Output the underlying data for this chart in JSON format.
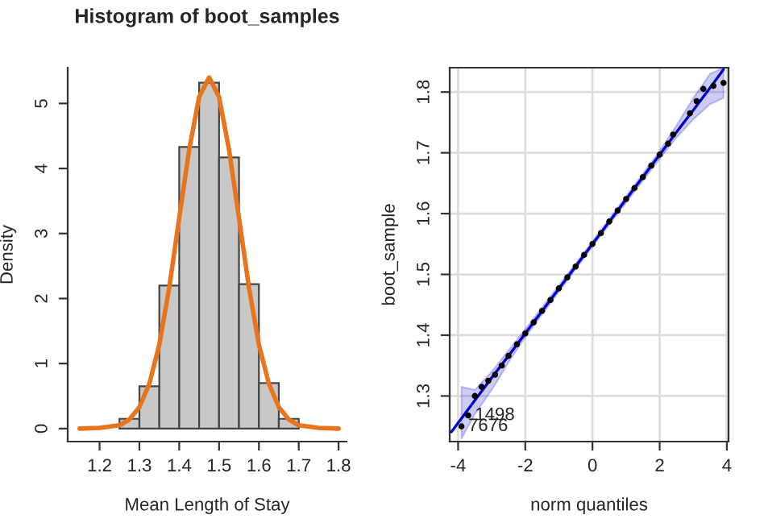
{
  "chart_data": [
    {
      "type": "histogram",
      "title": "Histogram of boot_samples",
      "xlabel": "Mean Length of Stay",
      "ylabel": "Density",
      "bins": [
        1.25,
        1.3,
        1.35,
        1.4,
        1.45,
        1.5,
        1.55,
        1.6,
        1.65,
        1.7,
        1.75
      ],
      "series": [
        {
          "type": "histogram",
          "color": "#c8c8c8",
          "values": [
            0.15,
            0.65,
            2.2,
            4.33,
            5.32,
            4.17,
            2.22,
            0.7,
            0.15,
            null
          ]
        },
        {
          "type": "line",
          "color": "#e8741e",
          "x": [
            1.15,
            1.2,
            1.25,
            1.275,
            1.3,
            1.325,
            1.35,
            1.375,
            1.4,
            1.425,
            1.45,
            1.475,
            1.5,
            1.525,
            1.55,
            1.575,
            1.6,
            1.625,
            1.65,
            1.675,
            1.7,
            1.75,
            1.8
          ],
          "values": [
            0,
            0.01,
            0.05,
            0.14,
            0.33,
            0.69,
            1.29,
            2.17,
            3.24,
            4.29,
            5.1,
            5.4,
            5.1,
            4.29,
            3.24,
            2.17,
            1.29,
            0.69,
            0.33,
            0.14,
            0.05,
            0.01,
            0
          ]
        }
      ],
      "xlim": [
        1.12,
        1.82
      ],
      "ylim": [
        -0.2,
        5.55
      ],
      "xticks": [
        1.2,
        1.3,
        1.4,
        1.5,
        1.6,
        1.7,
        1.8
      ],
      "yticks": [
        0,
        1,
        2,
        3,
        4,
        5
      ],
      "grid": false
    },
    {
      "type": "scatter",
      "xlabel": "norm quantiles",
      "ylabel": "boot_sample",
      "series": [
        {
          "type": "line",
          "color": "#0000cc",
          "x": [
            -4.2,
            -3.9,
            -3.5,
            -3,
            -2.5,
            -2,
            0,
            2,
            2.5,
            3,
            3.5,
            3.9
          ],
          "values": [
            1.241,
            1.263,
            1.293,
            1.33,
            1.366,
            1.403,
            1.55,
            1.697,
            1.734,
            1.77,
            1.807,
            1.837
          ],
          "lower": [
            null,
            1.23,
            1.27,
            1.31,
            1.355,
            1.397,
            1.546,
            1.69,
            1.725,
            1.755,
            1.78,
            1.79
          ],
          "upper": [
            null,
            1.315,
            1.31,
            1.34,
            1.375,
            1.41,
            1.554,
            1.703,
            1.745,
            1.79,
            1.83,
            1.84
          ]
        },
        {
          "type": "scatter",
          "color": "#000000",
          "x": [
            -3.9,
            -3.7,
            -3.5,
            -3.3,
            -3.1,
            -2.9,
            -2.7,
            -2.5,
            -2.25,
            -2,
            -1.75,
            -1.5,
            -1.25,
            -1,
            -0.75,
            -0.5,
            -0.25,
            0,
            0.25,
            0.5,
            0.75,
            1,
            1.25,
            1.5,
            1.75,
            2,
            2.25,
            2.4,
            2.9,
            3.1,
            3.3,
            3.6,
            3.9
          ],
          "values": [
            1.25,
            1.268,
            1.3,
            1.315,
            1.325,
            1.335,
            1.35,
            1.366,
            1.385,
            1.403,
            1.421,
            1.44,
            1.458,
            1.477,
            1.495,
            1.513,
            1.532,
            1.55,
            1.568,
            1.587,
            1.605,
            1.624,
            1.642,
            1.66,
            1.679,
            1.697,
            1.715,
            1.73,
            1.765,
            1.785,
            1.805,
            1.81,
            1.815
          ]
        }
      ],
      "annotations": [
        {
          "text": "1498",
          "x": -3.7,
          "y": 1.268
        },
        {
          "text": "7676",
          "x": -3.9,
          "y": 1.25
        }
      ],
      "xlim": [
        -4.25,
        4.05
      ],
      "ylim": [
        1.225,
        1.84
      ],
      "xticks": [
        -4,
        -2,
        0,
        2,
        4
      ],
      "yticks": [
        1.3,
        1.4,
        1.5,
        1.6,
        1.7,
        1.8
      ],
      "grid": true
    }
  ]
}
